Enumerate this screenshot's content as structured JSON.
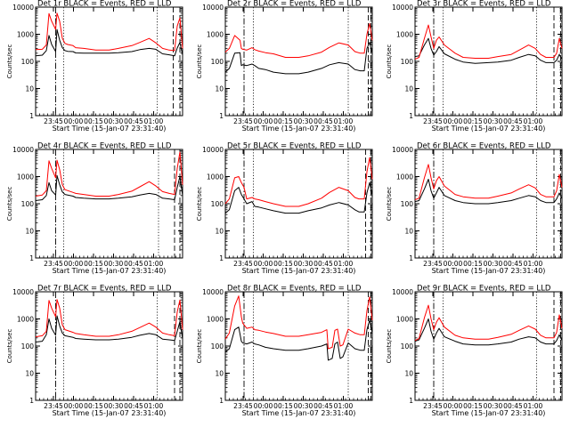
{
  "figure": {
    "xlabel": "Start Time (15-Jan-07 23:31:40)",
    "ylabel": "Counts/sec",
    "x_tick_labels": [
      "23:45",
      "00:00",
      "00:15",
      "00:30",
      "00:45",
      "01:00"
    ],
    "y_tick_labels": [
      "1",
      "10",
      "100",
      "1000",
      "10000"
    ]
  },
  "colors": {
    "events": "#000000",
    "lld": "#ff0000"
  },
  "chart_data": [
    {
      "type": "line",
      "title": "Det 1r  BLACK = Events, RED = LLD",
      "y_scale": "log",
      "ylim": [
        1,
        10000
      ],
      "x_minutes": [
        0,
        5,
        8,
        10,
        12,
        15,
        16,
        18,
        20,
        22,
        24,
        28,
        30,
        36,
        45,
        55,
        62,
        72,
        78,
        85,
        90,
        95,
        100,
        104,
        106,
        108,
        110
      ],
      "series": [
        {
          "name": "Events",
          "values": [
            160,
            170,
            250,
            900,
            420,
            230,
            1500,
            600,
            320,
            250,
            235,
            230,
            205,
            200,
            200,
            200,
            210,
            230,
            270,
            300,
            280,
            190,
            175,
            160,
            310,
            500,
            170
          ]
        },
        {
          "name": "LLD",
          "values": [
            270,
            280,
            400,
            5800,
            3000,
            1500,
            6000,
            3000,
            700,
            460,
            420,
            380,
            320,
            300,
            260,
            260,
            300,
            380,
            500,
            700,
            480,
            300,
            260,
            250,
            2000,
            4000,
            300
          ]
        }
      ],
      "lines": {
        "dotted": [
          21,
          91
        ],
        "dashdot": [
          15
        ],
        "dashed": [
          103,
          108
        ]
      }
    },
    {
      "type": "line",
      "title": "Det 2r  BLACK = Events, RED = LLD",
      "y_scale": "log",
      "ylim": [
        1,
        10000
      ],
      "x_minutes": [
        0,
        3,
        7,
        11,
        12,
        13,
        16,
        20,
        22,
        25,
        30,
        36,
        45,
        55,
        62,
        72,
        78,
        85,
        92,
        97,
        101,
        104,
        106,
        108,
        110
      ],
      "series": [
        {
          "name": "Events",
          "values": [
            40,
            55,
            200,
            210,
            70,
            75,
            70,
            80,
            70,
            55,
            50,
            40,
            35,
            35,
            40,
            55,
            75,
            90,
            80,
            50,
            45,
            45,
            300,
            500,
            200
          ]
        },
        {
          "name": "LLD",
          "values": [
            220,
            300,
            900,
            600,
            300,
            280,
            260,
            320,
            270,
            240,
            210,
            190,
            140,
            140,
            160,
            220,
            330,
            480,
            400,
            230,
            200,
            200,
            1000,
            2500,
            600
          ]
        }
      ],
      "lines": {
        "dotted": [
          21,
          92
        ],
        "dashdot": [
          14
        ],
        "dashed": [
          107,
          109
        ]
      }
    },
    {
      "type": "line",
      "title": "Det 3r  BLACK = Events, RED = LLD",
      "y_scale": "log",
      "ylim": [
        1,
        10000
      ],
      "x_minutes": [
        0,
        3,
        7,
        10,
        12,
        14,
        16,
        18,
        22,
        30,
        36,
        45,
        55,
        62,
        72,
        78,
        85,
        90,
        94,
        98,
        102,
        104,
        106,
        108,
        110
      ],
      "series": [
        {
          "name": "Events",
          "values": [
            150,
            160,
            400,
            700,
            300,
            170,
            230,
            350,
            190,
            120,
            95,
            85,
            90,
            95,
            110,
            140,
            180,
            160,
            110,
            90,
            90,
            90,
            110,
            180,
            120
          ]
        },
        {
          "name": "LLD",
          "values": [
            120,
            140,
            700,
            2200,
            800,
            300,
            600,
            800,
            400,
            200,
            140,
            130,
            130,
            150,
            180,
            260,
            400,
            300,
            180,
            140,
            140,
            140,
            200,
            700,
            300
          ]
        }
      ],
      "lines": {
        "dotted": [
          21,
          91
        ],
        "dashdot": [
          14
        ],
        "dashed": [
          104,
          109
        ]
      }
    },
    {
      "type": "line",
      "title": "Det 4r  BLACK = Events, RED = LLD",
      "y_scale": "log",
      "ylim": [
        1,
        10000
      ],
      "x_minutes": [
        0,
        5,
        8,
        10,
        12,
        15,
        16,
        18,
        20,
        22,
        28,
        30,
        36,
        45,
        55,
        62,
        72,
        78,
        85,
        90,
        95,
        100,
        104,
        106,
        108,
        110
      ],
      "series": [
        {
          "name": "Events",
          "values": [
            130,
            140,
            200,
            600,
            300,
            210,
            1100,
            500,
            270,
            220,
            190,
            170,
            160,
            150,
            150,
            160,
            180,
            210,
            240,
            220,
            160,
            150,
            140,
            400,
            1000,
            200
          ]
        },
        {
          "name": "LLD",
          "values": [
            190,
            210,
            300,
            3800,
            2000,
            900,
            4000,
            1800,
            500,
            330,
            260,
            240,
            220,
            190,
            190,
            220,
            290,
            420,
            650,
            450,
            280,
            240,
            220,
            2000,
            8000,
            500
          ]
        }
      ],
      "lines": {
        "dotted": [
          21,
          92
        ],
        "dashdot": [
          15
        ],
        "dashed": [
          104,
          108
        ]
      }
    },
    {
      "type": "line",
      "title": "Det 5r  BLACK = Events, RED = LLD",
      "y_scale": "log",
      "ylim": [
        1,
        10000
      ],
      "x_minutes": [
        0,
        3,
        7,
        10,
        12,
        14,
        16,
        20,
        22,
        25,
        30,
        36,
        45,
        55,
        62,
        72,
        78,
        85,
        92,
        97,
        100,
        104,
        106,
        108,
        110
      ],
      "series": [
        {
          "name": "Events",
          "values": [
            45,
            60,
            300,
            400,
            220,
            150,
            100,
            120,
            80,
            75,
            65,
            55,
            45,
            45,
            55,
            70,
            90,
            110,
            90,
            60,
            50,
            50,
            250,
            600,
            200
          ]
        },
        {
          "name": "LLD",
          "values": [
            100,
            150,
            900,
            1000,
            600,
            400,
            150,
            170,
            150,
            140,
            120,
            100,
            80,
            80,
            100,
            160,
            260,
            400,
            300,
            170,
            150,
            150,
            1500,
            5000,
            800
          ]
        }
      ],
      "lines": {
        "dotted": [
          21,
          92
        ],
        "dashdot": [
          14
        ],
        "dashed": [
          105,
          109
        ]
      }
    },
    {
      "type": "line",
      "title": "Det 6r  BLACK = Events, RED = LLD",
      "y_scale": "log",
      "ylim": [
        1,
        10000
      ],
      "x_minutes": [
        0,
        3,
        7,
        10,
        12,
        14,
        16,
        18,
        22,
        30,
        36,
        45,
        55,
        62,
        72,
        78,
        85,
        90,
        94,
        98,
        102,
        104,
        106,
        108,
        110
      ],
      "series": [
        {
          "name": "Events",
          "values": [
            120,
            130,
            350,
            800,
            300,
            160,
            250,
            400,
            200,
            130,
            110,
            100,
            100,
            110,
            130,
            160,
            200,
            180,
            130,
            110,
            110,
            110,
            150,
            250,
            150
          ]
        },
        {
          "name": "LLD",
          "values": [
            140,
            160,
            900,
            2800,
            900,
            350,
            700,
            1000,
            450,
            220,
            180,
            160,
            160,
            190,
            250,
            350,
            500,
            380,
            220,
            180,
            180,
            180,
            300,
            1200,
            400
          ]
        }
      ],
      "lines": {
        "dotted": [
          21,
          91
        ],
        "dashdot": [
          14
        ],
        "dashed": [
          104,
          109
        ]
      }
    },
    {
      "type": "line",
      "title": "Det 7r  BLACK = Events, RED = LLD",
      "y_scale": "log",
      "ylim": [
        1,
        10000
      ],
      "x_minutes": [
        0,
        5,
        8,
        10,
        12,
        15,
        16,
        18,
        20,
        22,
        28,
        30,
        36,
        45,
        55,
        62,
        72,
        78,
        85,
        90,
        95,
        100,
        104,
        106,
        108,
        110
      ],
      "series": [
        {
          "name": "Events",
          "values": [
            140,
            150,
            260,
            1000,
            450,
            250,
            1300,
            550,
            300,
            240,
            210,
            190,
            180,
            170,
            170,
            180,
            210,
            250,
            290,
            260,
            180,
            170,
            160,
            350,
            800,
            180
          ]
        },
        {
          "name": "LLD",
          "values": [
            220,
            240,
            350,
            4800,
            2500,
            1200,
            5200,
            2500,
            600,
            400,
            320,
            290,
            260,
            230,
            230,
            260,
            350,
            480,
            700,
            500,
            300,
            260,
            240,
            1800,
            5000,
            400
          ]
        }
      ],
      "lines": {
        "dotted": [
          21,
          91
        ],
        "dashdot": [
          15
        ],
        "dashed": [
          104,
          108
        ]
      }
    },
    {
      "type": "line",
      "title": "Det 8r  BLACK = Events, RED = LLD",
      "y_scale": "log",
      "ylim": [
        1,
        10000
      ],
      "x_minutes": [
        0,
        3,
        7,
        10,
        12,
        13,
        16,
        20,
        22,
        25,
        30,
        36,
        45,
        55,
        62,
        72,
        76,
        77,
        80,
        82,
        84,
        86,
        88,
        92,
        97,
        101,
        104,
        106,
        108,
        110
      ],
      "series": [
        {
          "name": "Events",
          "values": [
            60,
            80,
            400,
            500,
            150,
            130,
            120,
            140,
            120,
            110,
            90,
            80,
            70,
            70,
            80,
            100,
            120,
            30,
            35,
            120,
            140,
            35,
            40,
            130,
            80,
            70,
            70,
            400,
            900,
            300
          ]
        },
        {
          "name": "LLD",
          "values": [
            180,
            300,
            3000,
            7000,
            1200,
            700,
            450,
            500,
            400,
            380,
            330,
            290,
            230,
            230,
            260,
            320,
            400,
            80,
            90,
            380,
            420,
            100,
            110,
            420,
            300,
            260,
            260,
            2000,
            6500,
            900
          ]
        }
      ],
      "lines": {
        "dotted": [
          21,
          92
        ],
        "dashdot": [
          14
        ],
        "dashed": [
          107,
          109
        ]
      }
    },
    {
      "type": "line",
      "title": "Det 9r  BLACK = Events, RED = LLD",
      "y_scale": "log",
      "ylim": [
        1,
        10000
      ],
      "x_minutes": [
        0,
        3,
        7,
        10,
        12,
        14,
        16,
        18,
        22,
        30,
        36,
        45,
        55,
        62,
        72,
        78,
        85,
        90,
        94,
        98,
        102,
        104,
        106,
        108,
        110
      ],
      "series": [
        {
          "name": "Events",
          "values": [
            150,
            170,
            450,
            1000,
            350,
            180,
            300,
            450,
            220,
            150,
            120,
            110,
            110,
            120,
            140,
            180,
            220,
            200,
            140,
            120,
            120,
            120,
            160,
            260,
            160
          ]
        },
        {
          "name": "LLD",
          "values": [
            160,
            190,
            1100,
            3200,
            1000,
            400,
            750,
            1100,
            500,
            250,
            200,
            180,
            180,
            210,
            270,
            380,
            550,
            420,
            250,
            200,
            200,
            200,
            320,
            1400,
            450
          ]
        }
      ],
      "lines": {
        "dotted": [
          21,
          91
        ],
        "dashdot": [
          14
        ],
        "dashed": [
          104,
          109
        ]
      }
    }
  ]
}
